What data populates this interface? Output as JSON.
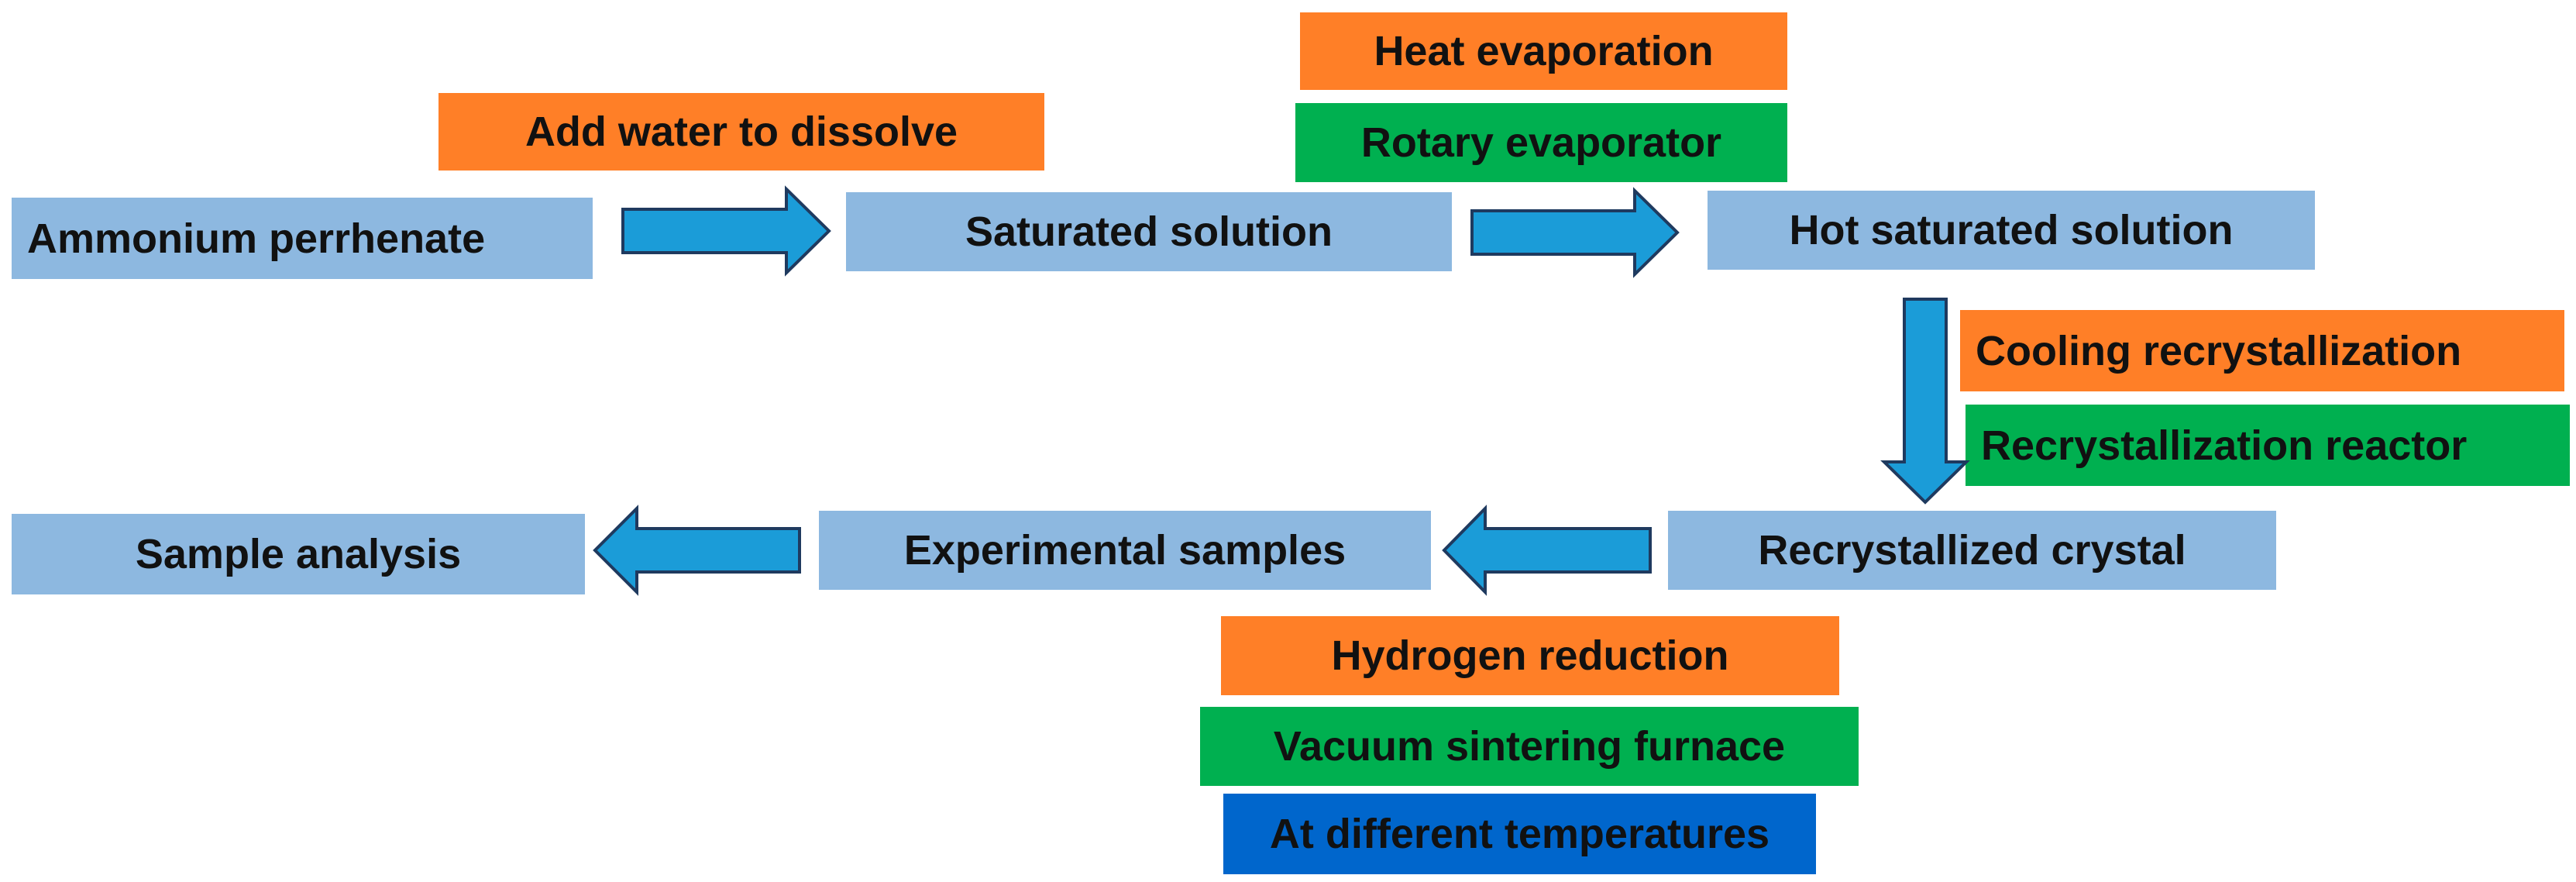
{
  "colors": {
    "step": "#8DB8E0",
    "operation": "#FF7F27",
    "equipment": "#00B050",
    "condition": "#0066CC",
    "arrow_fill": "#1B9CD8",
    "arrow_stroke": "#1F3A5F"
  },
  "steps": {
    "ammonium_perrhenate": "Ammonium perrhenate",
    "saturated_solution": "Saturated solution",
    "hot_saturated_solution": "Hot saturated solution",
    "recrystallized_crystal": "Recrystallized crystal",
    "experimental_samples": "Experimental samples",
    "sample_analysis": "Sample analysis"
  },
  "operations": {
    "add_water": "Add water to dissolve",
    "heat_evaporation": "Heat evaporation",
    "cooling_recrystallization": "Cooling recrystallization",
    "hydrogen_reduction": "Hydrogen reduction"
  },
  "equipment": {
    "rotary_evaporator": "Rotary evaporator",
    "recrystallization_reactor": "Recrystallization reactor",
    "vacuum_sintering_furnace": "Vacuum sintering furnace"
  },
  "conditions": {
    "different_temperatures": "At different temperatures"
  }
}
